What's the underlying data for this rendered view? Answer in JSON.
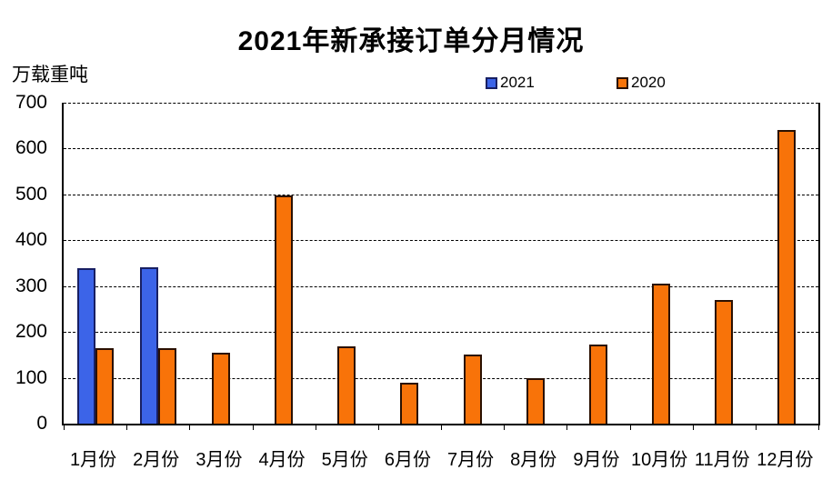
{
  "title": "2021年新承接订单分月情况",
  "y_axis_unit": "万载重吨",
  "colors": {
    "series_2021_fill": "#3C64E8",
    "series_2021_border": "#181F63",
    "series_2020_fill": "#F87309",
    "series_2020_border": "#2A1000",
    "axis": "#000000",
    "background": "#FFFFFF"
  },
  "chart_data": {
    "type": "bar",
    "title": "2021年新承接订单分月情况",
    "ylabel": "万载重吨",
    "categories": [
      "1月份",
      "2月份",
      "3月份",
      "4月份",
      "5月份",
      "6月份",
      "7月份",
      "8月份",
      "9月份",
      "10月份",
      "11月份",
      "12月份"
    ],
    "series": [
      {
        "name": "2021",
        "color": "#3C64E8",
        "border": "#181F63",
        "values": [
          340,
          342,
          null,
          null,
          null,
          null,
          null,
          null,
          null,
          null,
          null,
          null
        ]
      },
      {
        "name": "2020",
        "color": "#F87309",
        "border": "#2A1000",
        "values": [
          165,
          165,
          155,
          498,
          168,
          90,
          150,
          100,
          172,
          305,
          270,
          640
        ]
      }
    ],
    "ylim": [
      0,
      700
    ],
    "yticks": [
      0,
      100,
      200,
      300,
      400,
      500,
      600,
      700
    ],
    "grid": "horizontal-dashed",
    "legend_position": "top-center"
  }
}
